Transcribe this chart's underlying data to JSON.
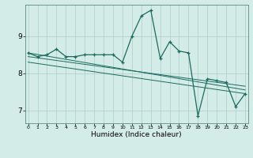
{
  "title": "",
  "xlabel": "Humidex (Indice chaleur)",
  "background_color": "#d4ece8",
  "grid_color": "#aeccc8",
  "line_color": "#1a6b5e",
  "x_ticks": [
    0,
    1,
    2,
    3,
    4,
    5,
    6,
    7,
    8,
    9,
    10,
    11,
    12,
    13,
    14,
    15,
    16,
    17,
    18,
    19,
    20,
    21,
    22,
    23
  ],
  "y_ticks": [
    7,
    8,
    9
  ],
  "xlim": [
    -0.3,
    23.3
  ],
  "ylim": [
    6.65,
    9.85
  ],
  "line1_x": [
    0,
    1,
    2,
    3,
    4,
    5,
    6,
    7,
    8,
    9,
    10,
    11,
    12,
    13,
    14,
    15,
    16,
    17,
    18,
    19,
    20,
    21,
    22,
    23
  ],
  "line1_y": [
    8.55,
    8.45,
    8.5,
    8.65,
    8.45,
    8.45,
    8.5,
    8.5,
    8.5,
    8.5,
    8.3,
    9.0,
    9.55,
    9.7,
    8.4,
    8.85,
    8.6,
    8.55,
    6.85,
    7.85,
    7.8,
    7.75,
    7.1,
    7.45
  ],
  "line2_x": [
    0,
    23
  ],
  "line2_y": [
    8.55,
    7.55
  ],
  "line3_x": [
    0,
    23
  ],
  "line3_y": [
    8.45,
    7.65
  ],
  "line4_x": [
    0,
    23
  ],
  "line4_y": [
    8.3,
    7.45
  ]
}
